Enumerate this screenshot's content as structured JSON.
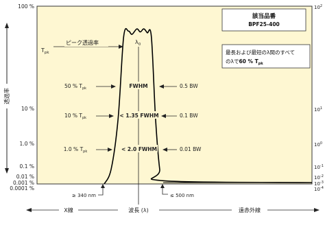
{
  "chart_data": {
    "type": "line",
    "title": "",
    "xlabel": "波長 (λ)",
    "ylabel": "透過率",
    "scale": "log",
    "y_ticks_left": [
      "100 %",
      "10 %",
      "1.0 %",
      "0.1 %",
      "0.01 %",
      "0.001 %",
      "0.0001 %"
    ],
    "y_ticks_right": [
      "10^2",
      "10^1",
      "10^0",
      "10^-1",
      "10^-2",
      "10^-3",
      "10^-4"
    ],
    "bottom_axis": {
      "left_label": "X線",
      "center_label": "波長 (λ)",
      "right_label": "遠赤外線"
    },
    "series": [
      {
        "values_note": "",
        "points": [
          {
            "x": 340,
            "y": 0.0001
          },
          {
            "x": 350,
            "y": 0.05
          },
          {
            "x": 360,
            "y": 5
          },
          {
            "x": 368,
            "y": 50
          },
          {
            "x": 375,
            "y": 57
          },
          {
            "x": 380,
            "y": 53
          },
          {
            "x": 387,
            "y": 60
          },
          {
            "x": 392,
            "y": 56
          },
          {
            "x": 397,
            "y": 60
          },
          {
            "x": 402,
            "y": 55
          },
          {
            "x": 408,
            "y": 50
          },
          {
            "x": 414,
            "y": 5
          },
          {
            "x": 420,
            "y": 0.05
          },
          {
            "x": 425,
            "y": 0.002
          },
          {
            "x": 500,
            "y": 0.001
          }
        ]
      }
    ],
    "product_box": {
      "title": "該当品番",
      "code": "BPF25-400"
    },
    "note_box": {
      "line1": "最長および最短のλ間のすべて",
      "line2": "のλで",
      "line2_bold": "60 % T",
      "line2_sub": "pk"
    },
    "annotations": {
      "tpk_label": "T",
      "tpk_sub": "pk",
      "peak_label": "ピーク透過率",
      "lambda_label": "λ",
      "lambda_sub": "0",
      "left_labels": [
        {
          "pre": "50 % T",
          "sub": "pk"
        },
        {
          "pre": "10 % T",
          "sub": "pk"
        },
        {
          "pre": "1.0 % T",
          "sub": "pk"
        }
      ],
      "center_labels": [
        "FWHM",
        "< 1.35 FWHM",
        "< 2.0 FWHM"
      ],
      "right_labels": [
        "0.5 BW",
        "0.1 BW",
        "0.01 BW"
      ],
      "x_left_note": "≥ 340 nm",
      "x_right_note": "≤ 500 nm"
    },
    "colors": {
      "plot_background": "#FEF7D2",
      "curve": "#000000",
      "frame": "#333333"
    }
  }
}
